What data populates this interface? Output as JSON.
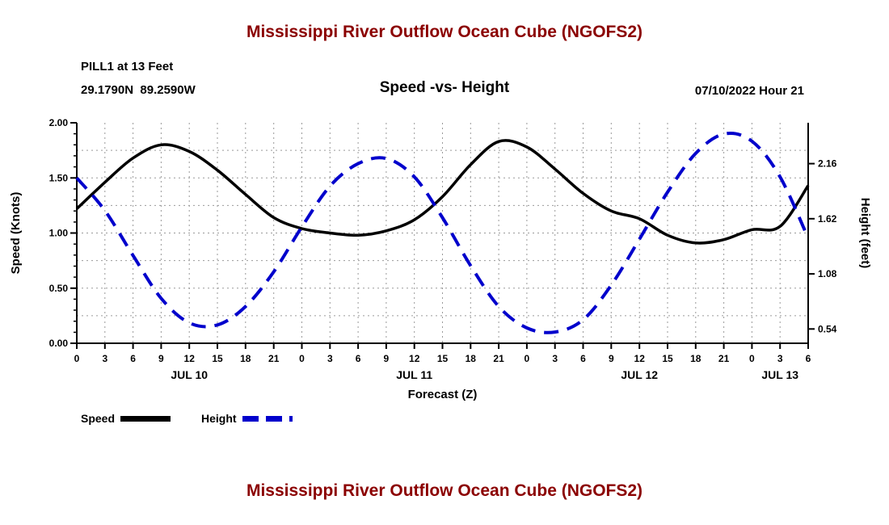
{
  "page": {
    "top_title": "Mississippi River Outflow Ocean Cube (NGOFS2)",
    "bottom_title": "Mississippi River Outflow Ocean Cube (NGOFS2)"
  },
  "header": {
    "station_line1": "PILL1 at 13 Feet",
    "station_line2": "29.1790N  89.2590W",
    "chart_title": "Speed -vs- Height",
    "datetime": "07/10/2022 Hour 21"
  },
  "legend": {
    "speed_label": "Speed",
    "height_label": "Height"
  },
  "colors": {
    "title": "#8b0000",
    "speed": "#000000",
    "height": "#0000cc",
    "grid": "#9a9a9a",
    "axis": "#000000"
  },
  "chart_data": {
    "type": "line",
    "title": "Speed -vs- Height",
    "xlabel": "Forecast (Z)",
    "ylabel_left": "Speed (Knots)",
    "ylabel_right": "Height (feet)",
    "x_hours": [
      0,
      3,
      6,
      9,
      12,
      15,
      18,
      21,
      24,
      27,
      30,
      33,
      36,
      39,
      42,
      45,
      48,
      51,
      54,
      57,
      60,
      63,
      66,
      69,
      72,
      75,
      78
    ],
    "x_tick_labels": [
      "0",
      "3",
      "6",
      "9",
      "12",
      "15",
      "18",
      "21",
      "0",
      "3",
      "6",
      "9",
      "12",
      "15",
      "18",
      "21",
      "0",
      "3",
      "6",
      "9",
      "12",
      "15",
      "18",
      "21",
      "0",
      "3",
      "6"
    ],
    "day_labels": [
      {
        "label": "JUL 10",
        "hour": 12
      },
      {
        "label": "JUL 11",
        "hour": 36
      },
      {
        "label": "JUL 12",
        "hour": 60
      },
      {
        "label": "JUL 13",
        "hour": 75
      }
    ],
    "left_axis": {
      "min": 0.0,
      "max": 2.0,
      "tick_values": [
        0.0,
        0.5,
        1.0,
        1.5,
        2.0
      ],
      "tick_labels": [
        "0.00",
        "0.50",
        "1.00",
        "1.50",
        "2.00"
      ],
      "minor_step": 0.1
    },
    "right_axis": {
      "min": 0.4,
      "max": 2.56,
      "tick_values": [
        0.54,
        1.08,
        1.62,
        2.16
      ],
      "tick_labels": [
        "0.54",
        "1.08",
        "1.62",
        "2.16"
      ]
    },
    "grid": {
      "h_step": 0.25,
      "vertical_at_every_x_tick": true
    },
    "series": [
      {
        "name": "Speed",
        "axis": "left",
        "style": "solid",
        "color": "#000000",
        "values": [
          1.22,
          1.46,
          1.68,
          1.8,
          1.74,
          1.57,
          1.35,
          1.14,
          1.04,
          1.0,
          0.98,
          1.02,
          1.12,
          1.33,
          1.62,
          1.83,
          1.78,
          1.58,
          1.36,
          1.2,
          1.13,
          0.98,
          0.91,
          0.94,
          1.03,
          1.06,
          1.43
        ]
      },
      {
        "name": "Height",
        "axis": "right",
        "style": "dashed",
        "color": "#0000cc",
        "values": [
          2.02,
          1.7,
          1.26,
          0.84,
          0.6,
          0.58,
          0.76,
          1.1,
          1.54,
          1.94,
          2.16,
          2.21,
          2.03,
          1.63,
          1.16,
          0.76,
          0.55,
          0.51,
          0.63,
          0.97,
          1.42,
          1.88,
          2.26,
          2.45,
          2.38,
          2.03,
          1.43
        ]
      }
    ]
  }
}
